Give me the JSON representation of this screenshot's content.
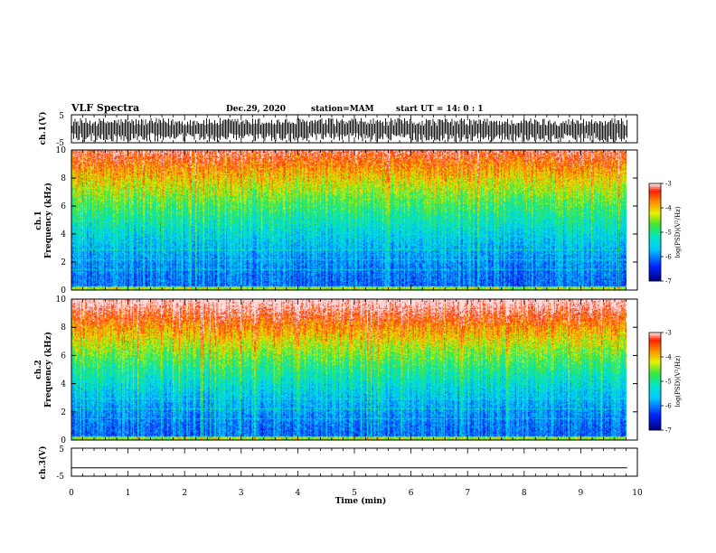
{
  "header": {
    "title": "VLF Spectra",
    "date": "Dec.29, 2020",
    "station": "station=MAM",
    "start_ut": "start  UT =   14: 0  : 1"
  },
  "chart_data": [
    {
      "type": "line",
      "panel": "ch1-waveform",
      "ylabel": "ch.1(V)",
      "ylim": [
        -5,
        5
      ],
      "yticks": [
        "5",
        "-5"
      ],
      "description_values": "dense burst waveform, amplitude mostly between -4 and +3 V"
    },
    {
      "type": "heatmap",
      "panel": "ch1-spectrogram",
      "ylabel_line1": "ch.1",
      "ylabel_line2": "Frequency (kHz)",
      "ylim": [
        0,
        10
      ],
      "yticks": [
        "0",
        "2",
        "4",
        "6",
        "8",
        "10"
      ],
      "colorbar": {
        "label": "log(PSD)(V²/Hz)",
        "range": [
          -7,
          -3
        ],
        "ticks": [
          "-3",
          "-4",
          "-5",
          "-6",
          "-7"
        ]
      }
    },
    {
      "type": "heatmap",
      "panel": "ch2-spectrogram",
      "ylabel_line1": "ch.2",
      "ylabel_line2": "Frequency (kHz)",
      "ylim": [
        0,
        10
      ],
      "yticks": [
        "0",
        "2",
        "4",
        "6",
        "8",
        "10"
      ],
      "colorbar": {
        "label": "log(PSD)(V²/Hz)",
        "range": [
          -7,
          -3
        ],
        "ticks": [
          "-3",
          "-4",
          "-5",
          "-6",
          "-7"
        ]
      }
    },
    {
      "type": "line",
      "panel": "ch3-waveform",
      "ylabel": "ch.3(V)",
      "ylim": [
        -5,
        5
      ],
      "yticks": [
        "5",
        "-5"
      ],
      "flat_value": -2
    }
  ],
  "xaxis": {
    "label": "Time  (min)",
    "range": [
      0,
      10
    ],
    "ticks": [
      "0",
      "1",
      "2",
      "3",
      "4",
      "5",
      "6",
      "7",
      "8",
      "9",
      "10"
    ],
    "data_end": 9.82
  }
}
